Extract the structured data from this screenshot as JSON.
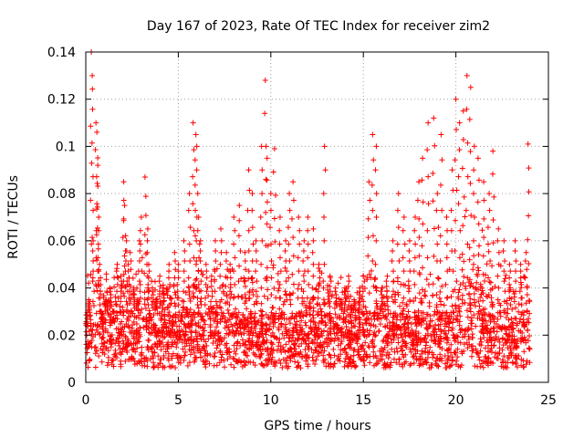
{
  "chart_data": {
    "type": "scatter",
    "title": "Day 167 of 2023, Rate Of TEC Index for receiver zim2",
    "xlabel": "GPS time / hours",
    "ylabel": "ROTI / TECUs",
    "xlim": [
      0,
      25
    ],
    "ylim": [
      0,
      0.14
    ],
    "xticks": [
      0,
      5,
      10,
      15,
      20,
      25
    ],
    "xtick_labels": [
      "0",
      "5",
      "10",
      "15",
      "20",
      "25"
    ],
    "yticks": [
      0,
      0.02,
      0.04,
      0.06,
      0.08,
      0.1,
      0.12,
      0.14
    ],
    "ytick_labels": [
      "0",
      "0.02",
      "0.04",
      "0.06",
      "0.08",
      "0.1",
      "0.12",
      "0.14"
    ],
    "grid": true,
    "marker": "+",
    "color": "#ff0000",
    "series": [
      {
        "name": "ROTI",
        "x": [
          0.05,
          0.15,
          0.3,
          0.35,
          0.4,
          0.55,
          0.6,
          0.65,
          0.7,
          0.75,
          0.8,
          0.9,
          1.1,
          1.3,
          1.5,
          1.7,
          1.9,
          2.05,
          2.1,
          2.2,
          2.3,
          2.4,
          2.6,
          2.8,
          2.9,
          3.0,
          3.2,
          3.35,
          3.4,
          3.6,
          3.8,
          4.0,
          4.2,
          4.5,
          4.8,
          5.0,
          5.3,
          5.6,
          5.8,
          5.95,
          6.0,
          6.1,
          6.2,
          6.5,
          6.8,
          7.0,
          7.3,
          7.6,
          7.8,
          8.0,
          8.3,
          8.6,
          8.8,
          9.0,
          9.2,
          9.5,
          9.7,
          9.8,
          10.0,
          10.2,
          10.5,
          10.8,
          11.0,
          11.2,
          11.5,
          11.8,
          12.0,
          12.3,
          12.6,
          12.9,
          13.2,
          13.5,
          13.8,
          14.0,
          14.2,
          14.5,
          14.8,
          15.0,
          15.3,
          15.5,
          15.7,
          16.0,
          16.3,
          16.6,
          16.9,
          17.2,
          17.5,
          17.8,
          18.0,
          18.2,
          18.5,
          18.8,
          19.0,
          19.2,
          19.5,
          19.8,
          20.0,
          20.2,
          20.4,
          20.6,
          20.8,
          21.0,
          21.2,
          21.5,
          21.8,
          22.0,
          22.3,
          22.6,
          22.9,
          23.2,
          23.5,
          23.8,
          23.9
        ],
        "y": [
          0.02,
          0.035,
          0.14,
          0.13,
          0.06,
          0.11,
          0.106,
          0.092,
          0.07,
          0.05,
          0.03,
          0.025,
          0.035,
          0.04,
          0.03,
          0.05,
          0.045,
          0.085,
          0.075,
          0.06,
          0.05,
          0.055,
          0.04,
          0.035,
          0.06,
          0.07,
          0.087,
          0.065,
          0.05,
          0.04,
          0.035,
          0.045,
          0.04,
          0.05,
          0.055,
          0.05,
          0.06,
          0.08,
          0.11,
          0.105,
          0.1,
          0.07,
          0.06,
          0.05,
          0.045,
          0.06,
          0.065,
          0.055,
          0.05,
          0.07,
          0.075,
          0.055,
          0.09,
          0.08,
          0.06,
          0.1,
          0.128,
          0.095,
          0.08,
          0.099,
          0.07,
          0.06,
          0.08,
          0.085,
          0.07,
          0.06,
          0.07,
          0.065,
          0.05,
          0.1,
          0.045,
          0.04,
          0.035,
          0.04,
          0.045,
          0.035,
          0.04,
          0.045,
          0.085,
          0.105,
          0.1,
          0.04,
          0.045,
          0.06,
          0.08,
          0.07,
          0.06,
          0.07,
          0.085,
          0.095,
          0.11,
          0.112,
          0.08,
          0.105,
          0.07,
          0.09,
          0.12,
          0.11,
          0.115,
          0.13,
          0.125,
          0.1,
          0.095,
          0.085,
          0.08,
          0.098,
          0.065,
          0.06,
          0.05,
          0.06,
          0.05,
          0.055,
          0.101
        ]
      }
    ],
    "background_band": "dense cloud of points between ~0.005 and ~0.04 across 0-24 h"
  }
}
